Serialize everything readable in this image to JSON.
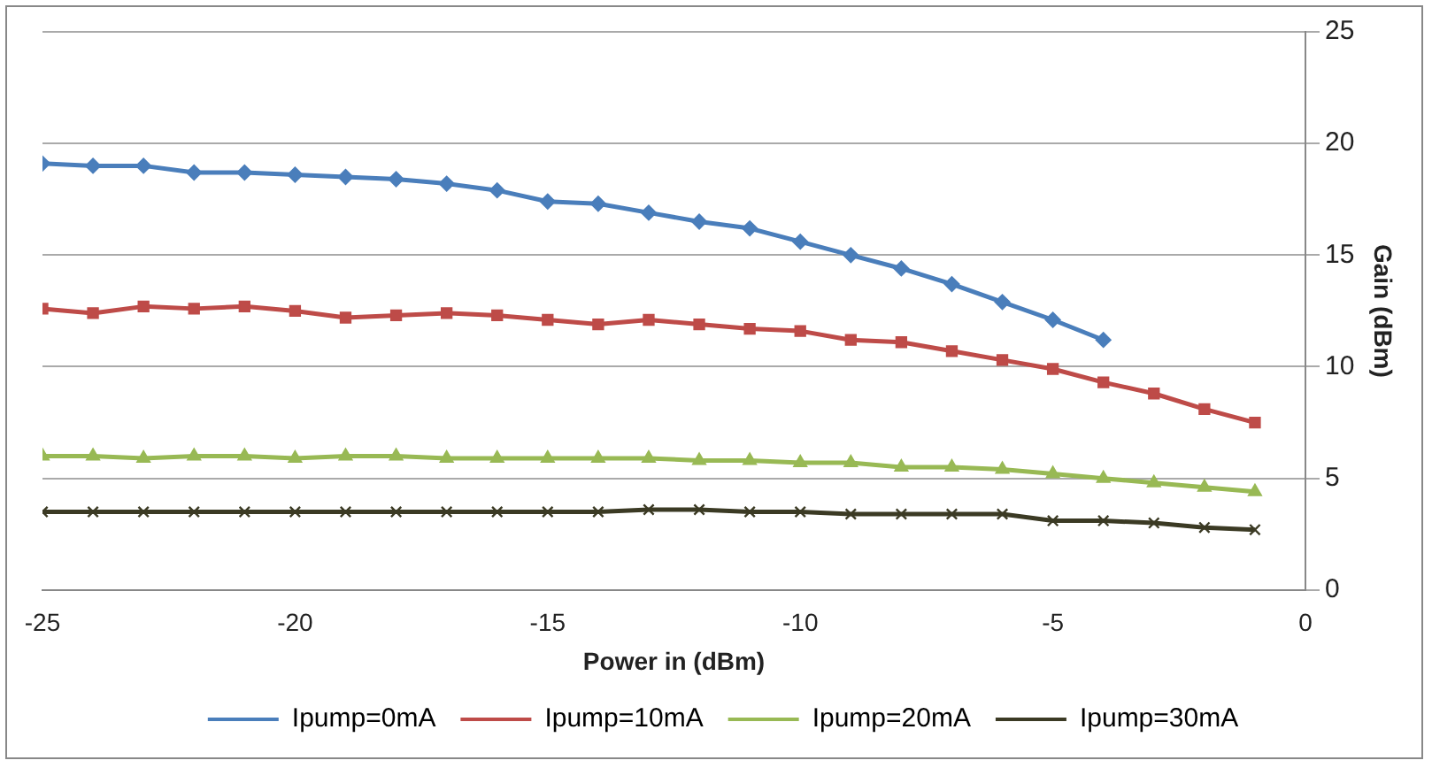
{
  "chart_data": {
    "type": "line",
    "xlabel": "Power in (dBm)",
    "ylabel": "Gain (dBm)",
    "xlim": [
      -25,
      0
    ],
    "xticks": [
      -25,
      -20,
      -15,
      -10,
      -5,
      0
    ],
    "ylim": [
      0,
      25
    ],
    "yticks": [
      0,
      5,
      10,
      15,
      20,
      25
    ],
    "grid": "y",
    "legend": "bottom",
    "line_style": "solid",
    "series": [
      {
        "name": "Ipump=0mA",
        "color": "#4a7ebb",
        "marker": "diamond",
        "x": [
          -25,
          -24,
          -23,
          -22,
          -21,
          -20,
          -19,
          -18,
          -17,
          -16,
          -15,
          -14,
          -13,
          -12,
          -11,
          -10,
          -9,
          -8,
          -7,
          -6,
          -5,
          -4
        ],
        "values": [
          19.1,
          19.0,
          19.0,
          18.7,
          18.7,
          18.6,
          18.5,
          18.4,
          18.2,
          17.9,
          17.4,
          17.3,
          16.9,
          16.5,
          16.2,
          15.6,
          15.0,
          14.4,
          13.7,
          12.9,
          12.1,
          11.2
        ]
      },
      {
        "name": "Ipump=10mA",
        "color": "#be4b48",
        "marker": "square",
        "x": [
          -25,
          -24,
          -23,
          -22,
          -21,
          -20,
          -19,
          -18,
          -17,
          -16,
          -15,
          -14,
          -13,
          -12,
          -11,
          -10,
          -9,
          -8,
          -7,
          -6,
          -5,
          -4,
          -3,
          -2,
          -1
        ],
        "values": [
          12.6,
          12.4,
          12.7,
          12.6,
          12.7,
          12.5,
          12.2,
          12.3,
          12.4,
          12.3,
          12.1,
          11.9,
          12.1,
          11.9,
          11.7,
          11.6,
          11.2,
          11.1,
          10.7,
          10.3,
          9.9,
          9.3,
          8.8,
          8.1,
          7.5
        ]
      },
      {
        "name": "Ipump=20mA",
        "color": "#98b954",
        "marker": "triangle",
        "x": [
          -25,
          -24,
          -23,
          -22,
          -21,
          -20,
          -19,
          -18,
          -17,
          -16,
          -15,
          -14,
          -13,
          -12,
          -11,
          -10,
          -9,
          -8,
          -7,
          -6,
          -5,
          -4,
          -3,
          -2,
          -1
        ],
        "values": [
          6.0,
          6.0,
          5.9,
          6.0,
          6.0,
          5.9,
          6.0,
          6.0,
          5.9,
          5.9,
          5.9,
          5.9,
          5.9,
          5.8,
          5.8,
          5.7,
          5.7,
          5.5,
          5.5,
          5.4,
          5.2,
          5.0,
          4.8,
          4.6,
          4.4
        ]
      },
      {
        "name": "Ipump=30mA",
        "color": "#3b3a24",
        "marker": "cross",
        "x": [
          -25,
          -24,
          -23,
          -22,
          -21,
          -20,
          -19,
          -18,
          -17,
          -16,
          -15,
          -14,
          -13,
          -12,
          -11,
          -10,
          -9,
          -8,
          -7,
          -6,
          -5,
          -4,
          -3,
          -2,
          -1
        ],
        "values": [
          3.5,
          3.5,
          3.5,
          3.5,
          3.5,
          3.5,
          3.5,
          3.5,
          3.5,
          3.5,
          3.5,
          3.5,
          3.6,
          3.6,
          3.5,
          3.5,
          3.4,
          3.4,
          3.4,
          3.4,
          3.1,
          3.1,
          3.0,
          2.8,
          2.7
        ]
      }
    ]
  }
}
